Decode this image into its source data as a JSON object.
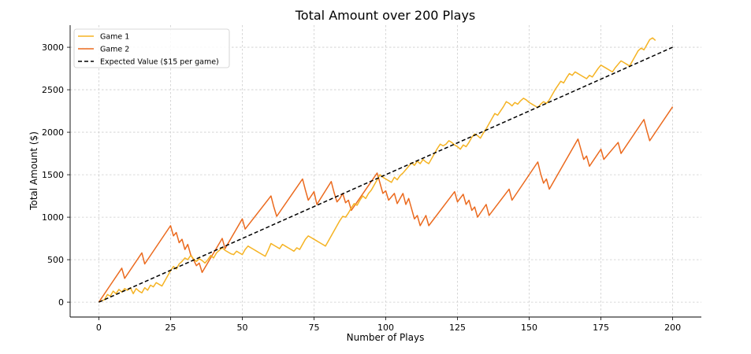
{
  "chart_data": {
    "type": "line",
    "title": "Total Amount over 200 Plays",
    "xlabel": "Number of Plays",
    "ylabel": "Total Amount ($)",
    "xlim": [
      -10,
      210
    ],
    "ylim": [
      -175,
      3260
    ],
    "xticks": [
      0,
      25,
      50,
      75,
      100,
      125,
      150,
      175,
      200
    ],
    "yticks": [
      0,
      500,
      1000,
      1500,
      2000,
      2500,
      3000
    ],
    "grid": true,
    "legend": "top-left",
    "series": [
      {
        "name": "Game 1",
        "color": "#f5b323",
        "style": "solid",
        "points": [
          [
            0,
            0
          ],
          [
            2,
            30
          ],
          [
            3,
            90
          ],
          [
            4,
            70
          ],
          [
            5,
            130
          ],
          [
            6,
            100
          ],
          [
            7,
            150
          ],
          [
            8,
            120
          ],
          [
            9,
            160
          ],
          [
            10,
            140
          ],
          [
            11,
            170
          ],
          [
            12,
            100
          ],
          [
            13,
            160
          ],
          [
            14,
            130
          ],
          [
            15,
            110
          ],
          [
            16,
            170
          ],
          [
            17,
            140
          ],
          [
            18,
            200
          ],
          [
            19,
            180
          ],
          [
            20,
            230
          ],
          [
            21,
            210
          ],
          [
            22,
            190
          ],
          [
            23,
            250
          ],
          [
            24,
            310
          ],
          [
            25,
            370
          ],
          [
            26,
            420
          ],
          [
            27,
            390
          ],
          [
            28,
            450
          ],
          [
            29,
            480
          ],
          [
            30,
            520
          ],
          [
            31,
            500
          ],
          [
            32,
            550
          ],
          [
            33,
            510
          ],
          [
            34,
            480
          ],
          [
            35,
            510
          ],
          [
            36,
            490
          ],
          [
            37,
            460
          ],
          [
            38,
            500
          ],
          [
            39,
            550
          ],
          [
            40,
            520
          ],
          [
            41,
            580
          ],
          [
            42,
            610
          ],
          [
            43,
            640
          ],
          [
            44,
            610
          ],
          [
            45,
            590
          ],
          [
            46,
            570
          ],
          [
            47,
            560
          ],
          [
            48,
            600
          ],
          [
            49,
            580
          ],
          [
            50,
            560
          ],
          [
            51,
            620
          ],
          [
            52,
            660
          ],
          [
            53,
            640
          ],
          [
            54,
            620
          ],
          [
            55,
            600
          ],
          [
            56,
            580
          ],
          [
            57,
            560
          ],
          [
            58,
            540
          ],
          [
            59,
            610
          ],
          [
            60,
            690
          ],
          [
            61,
            670
          ],
          [
            62,
            650
          ],
          [
            63,
            630
          ],
          [
            64,
            680
          ],
          [
            65,
            660
          ],
          [
            66,
            640
          ],
          [
            67,
            620
          ],
          [
            68,
            600
          ],
          [
            69,
            640
          ],
          [
            70,
            620
          ],
          [
            71,
            680
          ],
          [
            72,
            740
          ],
          [
            73,
            780
          ],
          [
            74,
            760
          ],
          [
            75,
            740
          ],
          [
            76,
            720
          ],
          [
            77,
            700
          ],
          [
            78,
            680
          ],
          [
            79,
            660
          ],
          [
            80,
            720
          ],
          [
            81,
            780
          ],
          [
            82,
            840
          ],
          [
            83,
            900
          ],
          [
            84,
            960
          ],
          [
            85,
            1010
          ],
          [
            86,
            1000
          ],
          [
            87,
            1050
          ],
          [
            88,
            1110
          ],
          [
            89,
            1160
          ],
          [
            90,
            1140
          ],
          [
            91,
            1200
          ],
          [
            92,
            1250
          ],
          [
            93,
            1220
          ],
          [
            94,
            1280
          ],
          [
            95,
            1320
          ],
          [
            96,
            1380
          ],
          [
            97,
            1440
          ],
          [
            98,
            1500
          ],
          [
            99,
            1470
          ],
          [
            100,
            1450
          ],
          [
            101,
            1430
          ],
          [
            102,
            1410
          ],
          [
            103,
            1470
          ],
          [
            104,
            1440
          ],
          [
            105,
            1490
          ],
          [
            106,
            1520
          ],
          [
            107,
            1560
          ],
          [
            108,
            1600
          ],
          [
            109,
            1640
          ],
          [
            110,
            1610
          ],
          [
            111,
            1660
          ],
          [
            112,
            1630
          ],
          [
            113,
            1680
          ],
          [
            114,
            1650
          ],
          [
            115,
            1630
          ],
          [
            116,
            1690
          ],
          [
            117,
            1750
          ],
          [
            118,
            1810
          ],
          [
            119,
            1860
          ],
          [
            120,
            1840
          ],
          [
            121,
            1860
          ],
          [
            122,
            1900
          ],
          [
            123,
            1880
          ],
          [
            124,
            1850
          ],
          [
            125,
            1830
          ],
          [
            126,
            1800
          ],
          [
            127,
            1850
          ],
          [
            128,
            1830
          ],
          [
            129,
            1880
          ],
          [
            130,
            1940
          ],
          [
            131,
            1980
          ],
          [
            132,
            1960
          ],
          [
            133,
            1930
          ],
          [
            134,
            1990
          ],
          [
            135,
            2040
          ],
          [
            136,
            2100
          ],
          [
            137,
            2160
          ],
          [
            138,
            2220
          ],
          [
            139,
            2200
          ],
          [
            140,
            2250
          ],
          [
            141,
            2300
          ],
          [
            142,
            2360
          ],
          [
            143,
            2340
          ],
          [
            144,
            2310
          ],
          [
            145,
            2350
          ],
          [
            146,
            2330
          ],
          [
            147,
            2370
          ],
          [
            148,
            2400
          ],
          [
            149,
            2380
          ],
          [
            150,
            2350
          ],
          [
            151,
            2330
          ],
          [
            152,
            2310
          ],
          [
            153,
            2290
          ],
          [
            154,
            2330
          ],
          [
            155,
            2360
          ],
          [
            156,
            2340
          ],
          [
            157,
            2380
          ],
          [
            158,
            2440
          ],
          [
            159,
            2500
          ],
          [
            160,
            2550
          ],
          [
            161,
            2600
          ],
          [
            162,
            2580
          ],
          [
            163,
            2640
          ],
          [
            164,
            2690
          ],
          [
            165,
            2670
          ],
          [
            166,
            2710
          ],
          [
            167,
            2690
          ],
          [
            168,
            2670
          ],
          [
            169,
            2650
          ],
          [
            170,
            2630
          ],
          [
            171,
            2670
          ],
          [
            172,
            2650
          ],
          [
            173,
            2700
          ],
          [
            174,
            2750
          ],
          [
            175,
            2790
          ],
          [
            176,
            2770
          ],
          [
            177,
            2750
          ],
          [
            178,
            2730
          ],
          [
            179,
            2710
          ],
          [
            180,
            2760
          ],
          [
            181,
            2800
          ],
          [
            182,
            2840
          ],
          [
            183,
            2820
          ],
          [
            184,
            2800
          ],
          [
            185,
            2780
          ],
          [
            186,
            2840
          ],
          [
            187,
            2900
          ],
          [
            188,
            2960
          ],
          [
            189,
            2990
          ],
          [
            190,
            2970
          ],
          [
            191,
            3030
          ],
          [
            192,
            3090
          ],
          [
            193,
            3110
          ],
          [
            194,
            3080
          ]
        ]
      },
      {
        "name": "Game 2",
        "color": "#eb6a1e",
        "style": "solid",
        "points": [
          [
            0,
            0
          ],
          [
            4,
            200
          ],
          [
            8,
            400
          ],
          [
            9,
            280
          ],
          [
            15,
            580
          ],
          [
            16,
            450
          ],
          [
            25,
            900
          ],
          [
            26,
            780
          ],
          [
            27,
            820
          ],
          [
            28,
            700
          ],
          [
            29,
            740
          ],
          [
            30,
            620
          ],
          [
            31,
            680
          ],
          [
            32,
            560
          ],
          [
            33,
            500
          ],
          [
            34,
            430
          ],
          [
            35,
            460
          ],
          [
            36,
            350
          ],
          [
            43,
            750
          ],
          [
            44,
            630
          ],
          [
            50,
            980
          ],
          [
            51,
            860
          ],
          [
            60,
            1250
          ],
          [
            61,
            1120
          ],
          [
            62,
            1010
          ],
          [
            71,
            1450
          ],
          [
            72,
            1320
          ],
          [
            73,
            1200
          ],
          [
            75,
            1300
          ],
          [
            76,
            1150
          ],
          [
            81,
            1420
          ],
          [
            82,
            1290
          ],
          [
            83,
            1180
          ],
          [
            84,
            1220
          ],
          [
            85,
            1280
          ],
          [
            86,
            1170
          ],
          [
            87,
            1200
          ],
          [
            88,
            1080
          ],
          [
            97,
            1520
          ],
          [
            98,
            1400
          ],
          [
            99,
            1280
          ],
          [
            100,
            1310
          ],
          [
            101,
            1200
          ],
          [
            103,
            1280
          ],
          [
            104,
            1160
          ],
          [
            106,
            1280
          ],
          [
            107,
            1150
          ],
          [
            108,
            1220
          ],
          [
            109,
            1100
          ],
          [
            110,
            980
          ],
          [
            111,
            1020
          ],
          [
            112,
            900
          ],
          [
            113,
            960
          ],
          [
            114,
            1020
          ],
          [
            115,
            900
          ],
          [
            124,
            1300
          ],
          [
            125,
            1180
          ],
          [
            127,
            1270
          ],
          [
            128,
            1150
          ],
          [
            129,
            1200
          ],
          [
            130,
            1080
          ],
          [
            131,
            1120
          ],
          [
            132,
            1000
          ],
          [
            135,
            1150
          ],
          [
            136,
            1020
          ],
          [
            143,
            1330
          ],
          [
            144,
            1200
          ],
          [
            153,
            1650
          ],
          [
            154,
            1510
          ],
          [
            155,
            1400
          ],
          [
            156,
            1450
          ],
          [
            157,
            1330
          ],
          [
            167,
            1920
          ],
          [
            168,
            1800
          ],
          [
            169,
            1680
          ],
          [
            170,
            1720
          ],
          [
            171,
            1600
          ],
          [
            175,
            1800
          ],
          [
            176,
            1680
          ],
          [
            181,
            1880
          ],
          [
            182,
            1750
          ],
          [
            190,
            2150
          ],
          [
            191,
            2020
          ],
          [
            192,
            1900
          ],
          [
            200,
            2300
          ]
        ]
      },
      {
        "name": "Expected Value ($15 per game)",
        "color": "#000000",
        "style": "dashed",
        "points": [
          [
            0,
            0
          ],
          [
            200,
            3000
          ]
        ]
      }
    ]
  }
}
